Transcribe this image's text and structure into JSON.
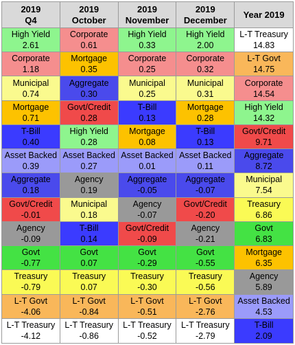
{
  "chart_data": {
    "type": "table",
    "columns": [
      {
        "year": "2019",
        "period": "Q4"
      },
      {
        "year": "2019",
        "period": "October"
      },
      {
        "year": "2019",
        "period": "November"
      },
      {
        "year": "2019",
        "period": "December"
      },
      {
        "year": "",
        "period": "Year 2019"
      }
    ],
    "category_colors": {
      "High Yield": "#8ef58e",
      "Corporate": "#f58e8e",
      "Municipal": "#fafa8e",
      "Mortgage": "#fdc200",
      "T-Bill": "#3b3bff",
      "Asset Backed": "#9b9bfa",
      "Aggregate": "#4a4aec",
      "Govt/Credit": "#f04a4a",
      "Agency": "#999999",
      "Govt": "#44e244",
      "Treasury": "#fafa55",
      "L-T Govt": "#f9b75a",
      "L-T Treasury": "#ffffff"
    },
    "rows": [
      [
        {
          "name": "High Yield",
          "value": "2.61"
        },
        {
          "name": "Corporate",
          "value": "0.61"
        },
        {
          "name": "High Yield",
          "value": "0.33"
        },
        {
          "name": "High Yield",
          "value": "2.00"
        },
        {
          "name": "L-T Treasury",
          "value": "14.83"
        }
      ],
      [
        {
          "name": "Corporate",
          "value": "1.18"
        },
        {
          "name": "Mortgage",
          "value": "0.35"
        },
        {
          "name": "Corporate",
          "value": "0.25"
        },
        {
          "name": "Corporate",
          "value": "0.32"
        },
        {
          "name": "L-T Govt",
          "value": "14.75"
        }
      ],
      [
        {
          "name": "Municipal",
          "value": "0.74"
        },
        {
          "name": "Aggregate",
          "value": "0.30"
        },
        {
          "name": "Municipal",
          "value": "0.25"
        },
        {
          "name": "Municipal",
          "value": "0.31"
        },
        {
          "name": "Corporate",
          "value": "14.54"
        }
      ],
      [
        {
          "name": "Mortgage",
          "value": "0.71"
        },
        {
          "name": "Govt/Credit",
          "value": "0.28"
        },
        {
          "name": "T-Bill",
          "value": "0.13"
        },
        {
          "name": "Mortgage",
          "value": "0.28"
        },
        {
          "name": "High Yield",
          "value": "14.32"
        }
      ],
      [
        {
          "name": "T-Bill",
          "value": "0.40"
        },
        {
          "name": "High Yield",
          "value": "0.28"
        },
        {
          "name": "Mortgage",
          "value": "0.08"
        },
        {
          "name": "T-Bill",
          "value": "0.13"
        },
        {
          "name": "Govt/Credit",
          "value": "9.71"
        }
      ],
      [
        {
          "name": "Asset Backed",
          "value": "0.39"
        },
        {
          "name": "Asset Backed",
          "value": "0.27"
        },
        {
          "name": "Asset Backed",
          "value": "0.01"
        },
        {
          "name": "Asset Backed",
          "value": "0.11"
        },
        {
          "name": "Aggregate",
          "value": "8.72"
        }
      ],
      [
        {
          "name": "Aggregate",
          "value": "0.18"
        },
        {
          "name": "Agency",
          "value": "0.19"
        },
        {
          "name": "Aggregate",
          "value": "-0.05"
        },
        {
          "name": "Aggregate",
          "value": "-0.07"
        },
        {
          "name": "Municipal",
          "value": "7.54"
        }
      ],
      [
        {
          "name": "Govt/Credit",
          "value": "-0.01"
        },
        {
          "name": "Municipal",
          "value": "0.18"
        },
        {
          "name": "Agency",
          "value": "-0.07"
        },
        {
          "name": "Govt/Credit",
          "value": "-0.20"
        },
        {
          "name": "Treasury",
          "value": "6.86"
        }
      ],
      [
        {
          "name": "Agency",
          "value": "-0.09"
        },
        {
          "name": "T-Bill",
          "value": "0.14"
        },
        {
          "name": "Govt/Credit",
          "value": "-0.09"
        },
        {
          "name": "Agency",
          "value": "-0.21"
        },
        {
          "name": "Govt",
          "value": "6.83"
        }
      ],
      [
        {
          "name": "Govt",
          "value": "-0.77"
        },
        {
          "name": "Govt",
          "value": "0.07"
        },
        {
          "name": "Govt",
          "value": "-0.29"
        },
        {
          "name": "Govt",
          "value": "-0.55"
        },
        {
          "name": "Mortgage",
          "value": "6.35"
        }
      ],
      [
        {
          "name": "Treasury",
          "value": "-0.79"
        },
        {
          "name": "Treasury",
          "value": "0.07"
        },
        {
          "name": "Treasury",
          "value": "-0.30"
        },
        {
          "name": "Treasury",
          "value": "-0.56"
        },
        {
          "name": "Agency",
          "value": "5.89"
        }
      ],
      [
        {
          "name": "L-T Govt",
          "value": "-4.06"
        },
        {
          "name": "L-T Govt",
          "value": "-0.84"
        },
        {
          "name": "L-T Govt",
          "value": "-0.51"
        },
        {
          "name": "L-T Govt",
          "value": "-2.76"
        },
        {
          "name": "Asset Backed",
          "value": "4.53"
        }
      ],
      [
        {
          "name": "L-T Treasury",
          "value": "-4.12"
        },
        {
          "name": "L-T Treasury",
          "value": "-0.86"
        },
        {
          "name": "L-T Treasury",
          "value": "-0.52"
        },
        {
          "name": "L-T Treasury",
          "value": "-2.79"
        },
        {
          "name": "T-Bill",
          "value": "2.09"
        }
      ]
    ]
  }
}
